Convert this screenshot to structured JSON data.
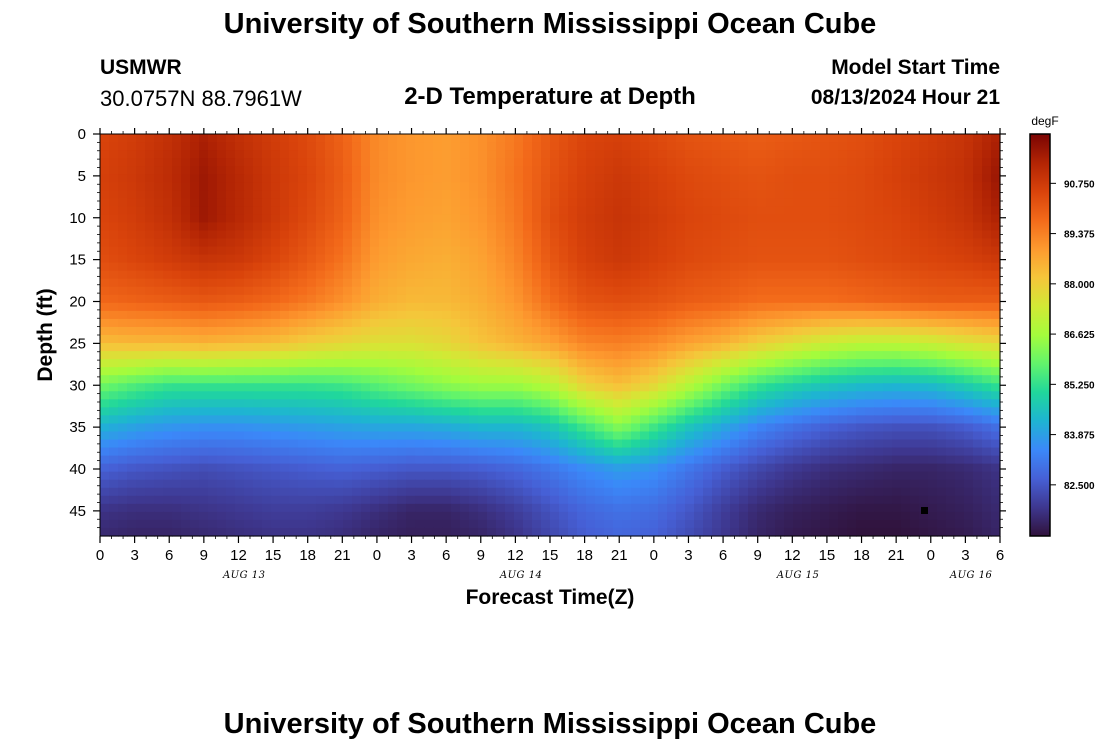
{
  "header": {
    "title": "University of Southern Mississippi Ocean Cube",
    "station": "USMWR",
    "coords": "30.0757N  88.7961W",
    "subtitle": "2-D Temperature at Depth",
    "model_label": "Model Start Time",
    "model_value": "08/13/2024 Hour 21"
  },
  "footer": {
    "title": "University of Southern Mississippi Ocean Cube"
  },
  "chart_data": {
    "type": "heatmap",
    "title": "2-D Temperature at Depth",
    "xlabel": "Forecast Time(Z)",
    "ylabel": "Depth (ft)",
    "units": "degF",
    "x_hour_range": [
      0,
      78
    ],
    "x_tick_labels": [
      "0",
      "3",
      "6",
      "9",
      "12",
      "15",
      "18",
      "21",
      "0",
      "3",
      "6",
      "9",
      "12",
      "15",
      "18",
      "21",
      "0",
      "3",
      "6",
      "9",
      "12",
      "15",
      "18",
      "21",
      "0",
      "3",
      "6"
    ],
    "date_labels": [
      {
        "label": "AUG 13",
        "hour": 12.5
      },
      {
        "label": "AUG 14",
        "hour": 36.5
      },
      {
        "label": "AUG 15",
        "hour": 60.5
      },
      {
        "label": "AUG 16",
        "hour": 75.5
      }
    ],
    "ylim": [
      48,
      0
    ],
    "y_ticks": [
      0,
      5,
      10,
      15,
      20,
      25,
      30,
      35,
      40,
      45
    ],
    "colorbar": {
      "range": [
        81.1,
        92.1
      ],
      "ticks": [
        90.75,
        89.375,
        88.0,
        86.625,
        85.25,
        83.875,
        82.5
      ],
      "tick_labels": [
        "90.750",
        "89.375",
        "88.000",
        "86.625",
        "85.250",
        "83.875",
        "82.500"
      ],
      "colors": [
        "#30123b",
        "#3e378f",
        "#4660d6",
        "#3b88f9",
        "#1eb4d2",
        "#20d79c",
        "#62f46b",
        "#a4fc3c",
        "#d2e935",
        "#f5c63a",
        "#fd9a2f",
        "#f36a1a",
        "#d9430b",
        "#b22404",
        "#7a0403"
      ]
    },
    "temperature_grid": {
      "hours": [
        0,
        3,
        6,
        9,
        12,
        15,
        18,
        21,
        24,
        27,
        30,
        33,
        36,
        39,
        42,
        45,
        48,
        51,
        54,
        57,
        60,
        63,
        66,
        69,
        72,
        75,
        78
      ],
      "depths": [
        0,
        5,
        10,
        15,
        20,
        25,
        30,
        35,
        40,
        45,
        48
      ],
      "values": [
        [
          90.5,
          90.7,
          91.0,
          91.4,
          91.0,
          90.7,
          90.4,
          89.9,
          89.2,
          89.0,
          88.9,
          89.1,
          89.5,
          90.1,
          90.5,
          90.6,
          90.4,
          90.2,
          90.1,
          90.0,
          90.1,
          90.2,
          90.3,
          90.5,
          90.7,
          90.9,
          91.4
        ],
        [
          90.6,
          90.8,
          91.1,
          91.6,
          91.2,
          90.8,
          90.5,
          90.0,
          89.2,
          89.0,
          88.9,
          89.1,
          89.6,
          90.2,
          90.6,
          90.8,
          90.6,
          90.4,
          90.3,
          90.2,
          90.3,
          90.3,
          90.4,
          90.6,
          90.8,
          91.0,
          91.7
        ],
        [
          90.5,
          90.7,
          91.0,
          91.6,
          91.2,
          90.8,
          90.4,
          89.9,
          89.1,
          88.9,
          88.8,
          89.0,
          89.5,
          90.3,
          90.7,
          90.9,
          90.7,
          90.5,
          90.4,
          90.3,
          90.3,
          90.3,
          90.4,
          90.5,
          90.7,
          90.9,
          91.4
        ],
        [
          90.3,
          90.5,
          90.7,
          90.9,
          90.8,
          90.5,
          90.1,
          89.6,
          88.9,
          88.7,
          88.6,
          88.8,
          89.3,
          90.1,
          90.6,
          90.8,
          90.6,
          90.4,
          90.3,
          90.2,
          90.2,
          90.2,
          90.3,
          90.4,
          90.5,
          90.6,
          90.8
        ],
        [
          89.8,
          89.9,
          90.0,
          90.1,
          90.0,
          89.8,
          89.5,
          89.1,
          88.6,
          88.4,
          88.4,
          88.6,
          89.0,
          89.7,
          90.2,
          90.3,
          90.2,
          90.0,
          89.9,
          89.7,
          89.7,
          89.7,
          89.8,
          89.9,
          90.0,
          90.0,
          90.0
        ],
        [
          88.3,
          88.4,
          88.4,
          88.5,
          88.4,
          88.3,
          88.0,
          87.8,
          87.6,
          87.6,
          87.8,
          88.2,
          88.5,
          88.8,
          89.3,
          89.4,
          89.2,
          88.8,
          88.5,
          88.0,
          87.6,
          87.2,
          87.0,
          87.0,
          87.2,
          87.5,
          87.8
        ],
        [
          86.0,
          85.6,
          85.3,
          85.3,
          85.3,
          85.3,
          85.3,
          85.4,
          85.7,
          86.0,
          86.3,
          86.5,
          86.5,
          86.9,
          87.9,
          88.3,
          87.8,
          86.9,
          86.0,
          85.3,
          84.9,
          84.6,
          84.4,
          84.3,
          84.4,
          84.8,
          85.3
        ],
        [
          84.2,
          83.9,
          83.7,
          83.6,
          83.6,
          83.7,
          83.8,
          83.9,
          84.0,
          84.0,
          84.1,
          84.3,
          84.3,
          84.6,
          85.4,
          86.2,
          85.4,
          84.6,
          84.0,
          83.4,
          83.0,
          82.7,
          82.5,
          82.4,
          82.4,
          82.6,
          83.0
        ],
        [
          82.7,
          82.5,
          82.4,
          82.3,
          82.4,
          82.5,
          82.6,
          82.7,
          82.6,
          82.5,
          82.5,
          82.6,
          82.8,
          83.1,
          83.5,
          83.8,
          83.6,
          83.1,
          82.6,
          82.2,
          81.9,
          81.7,
          81.6,
          81.5,
          81.5,
          81.6,
          81.8
        ],
        [
          81.8,
          81.7,
          81.7,
          81.8,
          81.9,
          82.0,
          82.0,
          81.9,
          81.7,
          81.5,
          81.5,
          81.7,
          82.0,
          82.4,
          82.8,
          83.0,
          82.9,
          82.5,
          82.0,
          81.6,
          81.4,
          81.3,
          81.2,
          81.2,
          81.3,
          81.4,
          81.6
        ],
        [
          81.6,
          81.5,
          81.5,
          81.6,
          81.7,
          81.8,
          81.8,
          81.7,
          81.5,
          81.4,
          81.4,
          81.5,
          81.8,
          82.2,
          82.6,
          82.8,
          82.7,
          82.3,
          81.9,
          81.5,
          81.3,
          81.2,
          81.1,
          81.1,
          81.2,
          81.3,
          81.5
        ]
      ]
    }
  }
}
